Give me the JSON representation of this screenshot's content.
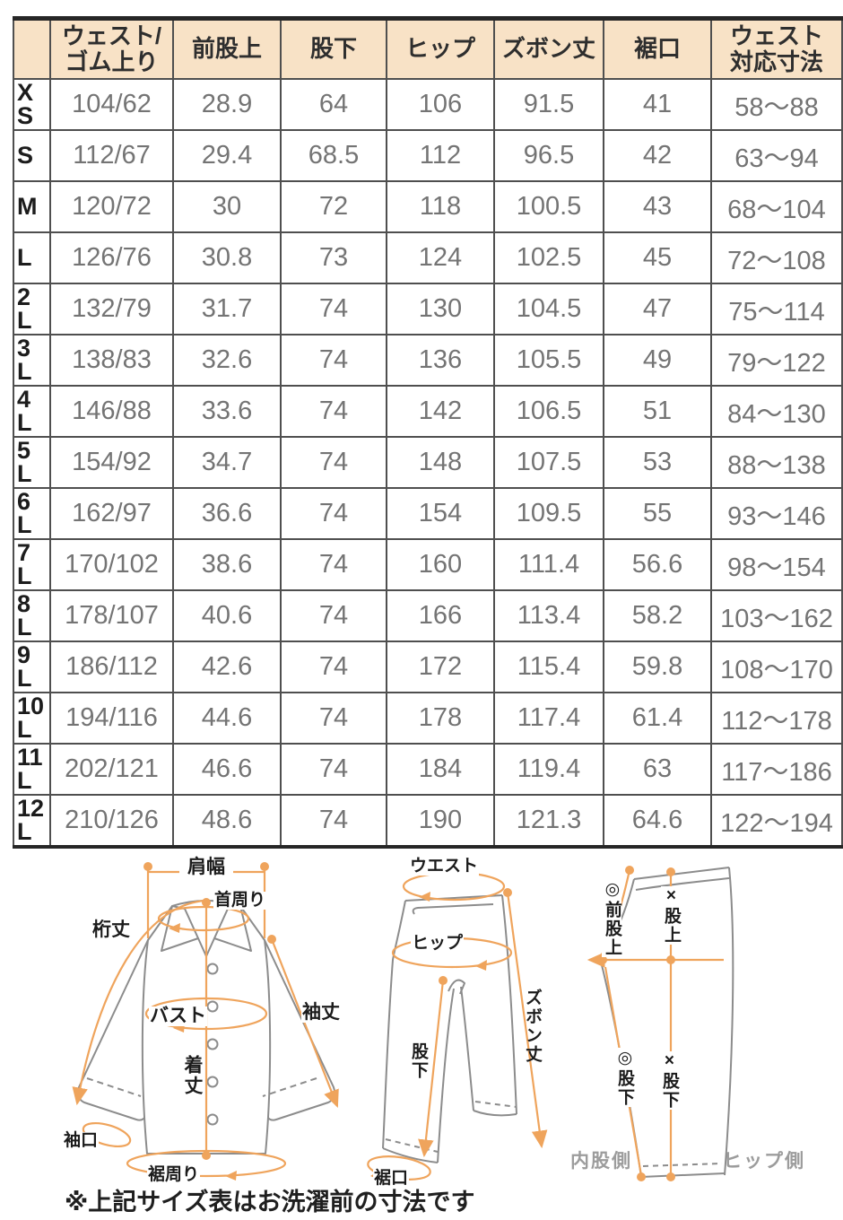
{
  "table": {
    "corner": "",
    "headers": [
      "",
      "ウェスト/\nゴム上り",
      "前股上",
      "股下",
      "ヒップ",
      "ズボン丈",
      "裾口",
      "ウェスト\n対応寸法"
    ],
    "rows": [
      {
        "size": "XS",
        "values": [
          "104/62",
          "28.9",
          "64",
          "106",
          "91.5",
          "41",
          "58〜88"
        ]
      },
      {
        "size": "S",
        "values": [
          "112/67",
          "29.4",
          "68.5",
          "112",
          "96.5",
          "42",
          "63〜94"
        ]
      },
      {
        "size": "M",
        "values": [
          "120/72",
          "30",
          "72",
          "118",
          "100.5",
          "43",
          "68〜104"
        ]
      },
      {
        "size": "L",
        "values": [
          "126/76",
          "30.8",
          "73",
          "124",
          "102.5",
          "45",
          "72〜108"
        ]
      },
      {
        "size": "2L",
        "values": [
          "132/79",
          "31.7",
          "74",
          "130",
          "104.5",
          "47",
          "75〜114"
        ]
      },
      {
        "size": "3L",
        "values": [
          "138/83",
          "32.6",
          "74",
          "136",
          "105.5",
          "49",
          "79〜122"
        ]
      },
      {
        "size": "4L",
        "values": [
          "146/88",
          "33.6",
          "74",
          "142",
          "106.5",
          "51",
          "84〜130"
        ]
      },
      {
        "size": "5L",
        "values": [
          "154/92",
          "34.7",
          "74",
          "148",
          "107.5",
          "53",
          "88〜138"
        ]
      },
      {
        "size": "6L",
        "values": [
          "162/97",
          "36.6",
          "74",
          "154",
          "109.5",
          "55",
          "93〜146"
        ]
      },
      {
        "size": "7L",
        "values": [
          "170/102",
          "38.6",
          "74",
          "160",
          "111.4",
          "56.6",
          "98〜154"
        ]
      },
      {
        "size": "8L",
        "values": [
          "178/107",
          "40.6",
          "74",
          "166",
          "113.4",
          "58.2",
          "103〜162"
        ]
      },
      {
        "size": "9L",
        "values": [
          "186/112",
          "42.6",
          "74",
          "172",
          "115.4",
          "59.8",
          "108〜170"
        ]
      },
      {
        "size": "10L",
        "values": [
          "194/116",
          "44.6",
          "74",
          "178",
          "117.4",
          "61.4",
          "112〜178"
        ]
      },
      {
        "size": "11L",
        "values": [
          "202/121",
          "46.6",
          "74",
          "184",
          "119.4",
          "63",
          "117〜186"
        ]
      },
      {
        "size": "12L",
        "values": [
          "210/126",
          "48.6",
          "74",
          "190",
          "121.3",
          "64.6",
          "122〜194"
        ]
      }
    ]
  },
  "diagrams": {
    "shirt": {
      "shoulder_width": "肩幅",
      "neck": "首周り",
      "sleeve_reach": "桁丈",
      "bust": "バスト",
      "sleeve_length": "袖丈",
      "body_length": "着丈",
      "cuff": "袖口",
      "hem_around": "裾周り"
    },
    "pants": {
      "waist": "ウエスト",
      "hip": "ヒップ",
      "pants_length": "ズボン丈",
      "inseam": "股下",
      "hem": "裾口"
    },
    "side": {
      "front_rise": "◎前股上",
      "rise": "×股上",
      "inseam_a": "◎股下",
      "inseam_b": "×股下",
      "inner_side": "内股側",
      "hip_side": "ヒップ側"
    }
  },
  "note": "※上記サイズ表はお洗濯前の寸法です",
  "colors": {
    "header_bg": "#F8E2C6",
    "accent_orange": "#EFA45C",
    "garment_outline": "#8C8C8C",
    "value_text": "#747474",
    "label_text": "#1C1C1C",
    "side_text": "#9C9C9C"
  }
}
